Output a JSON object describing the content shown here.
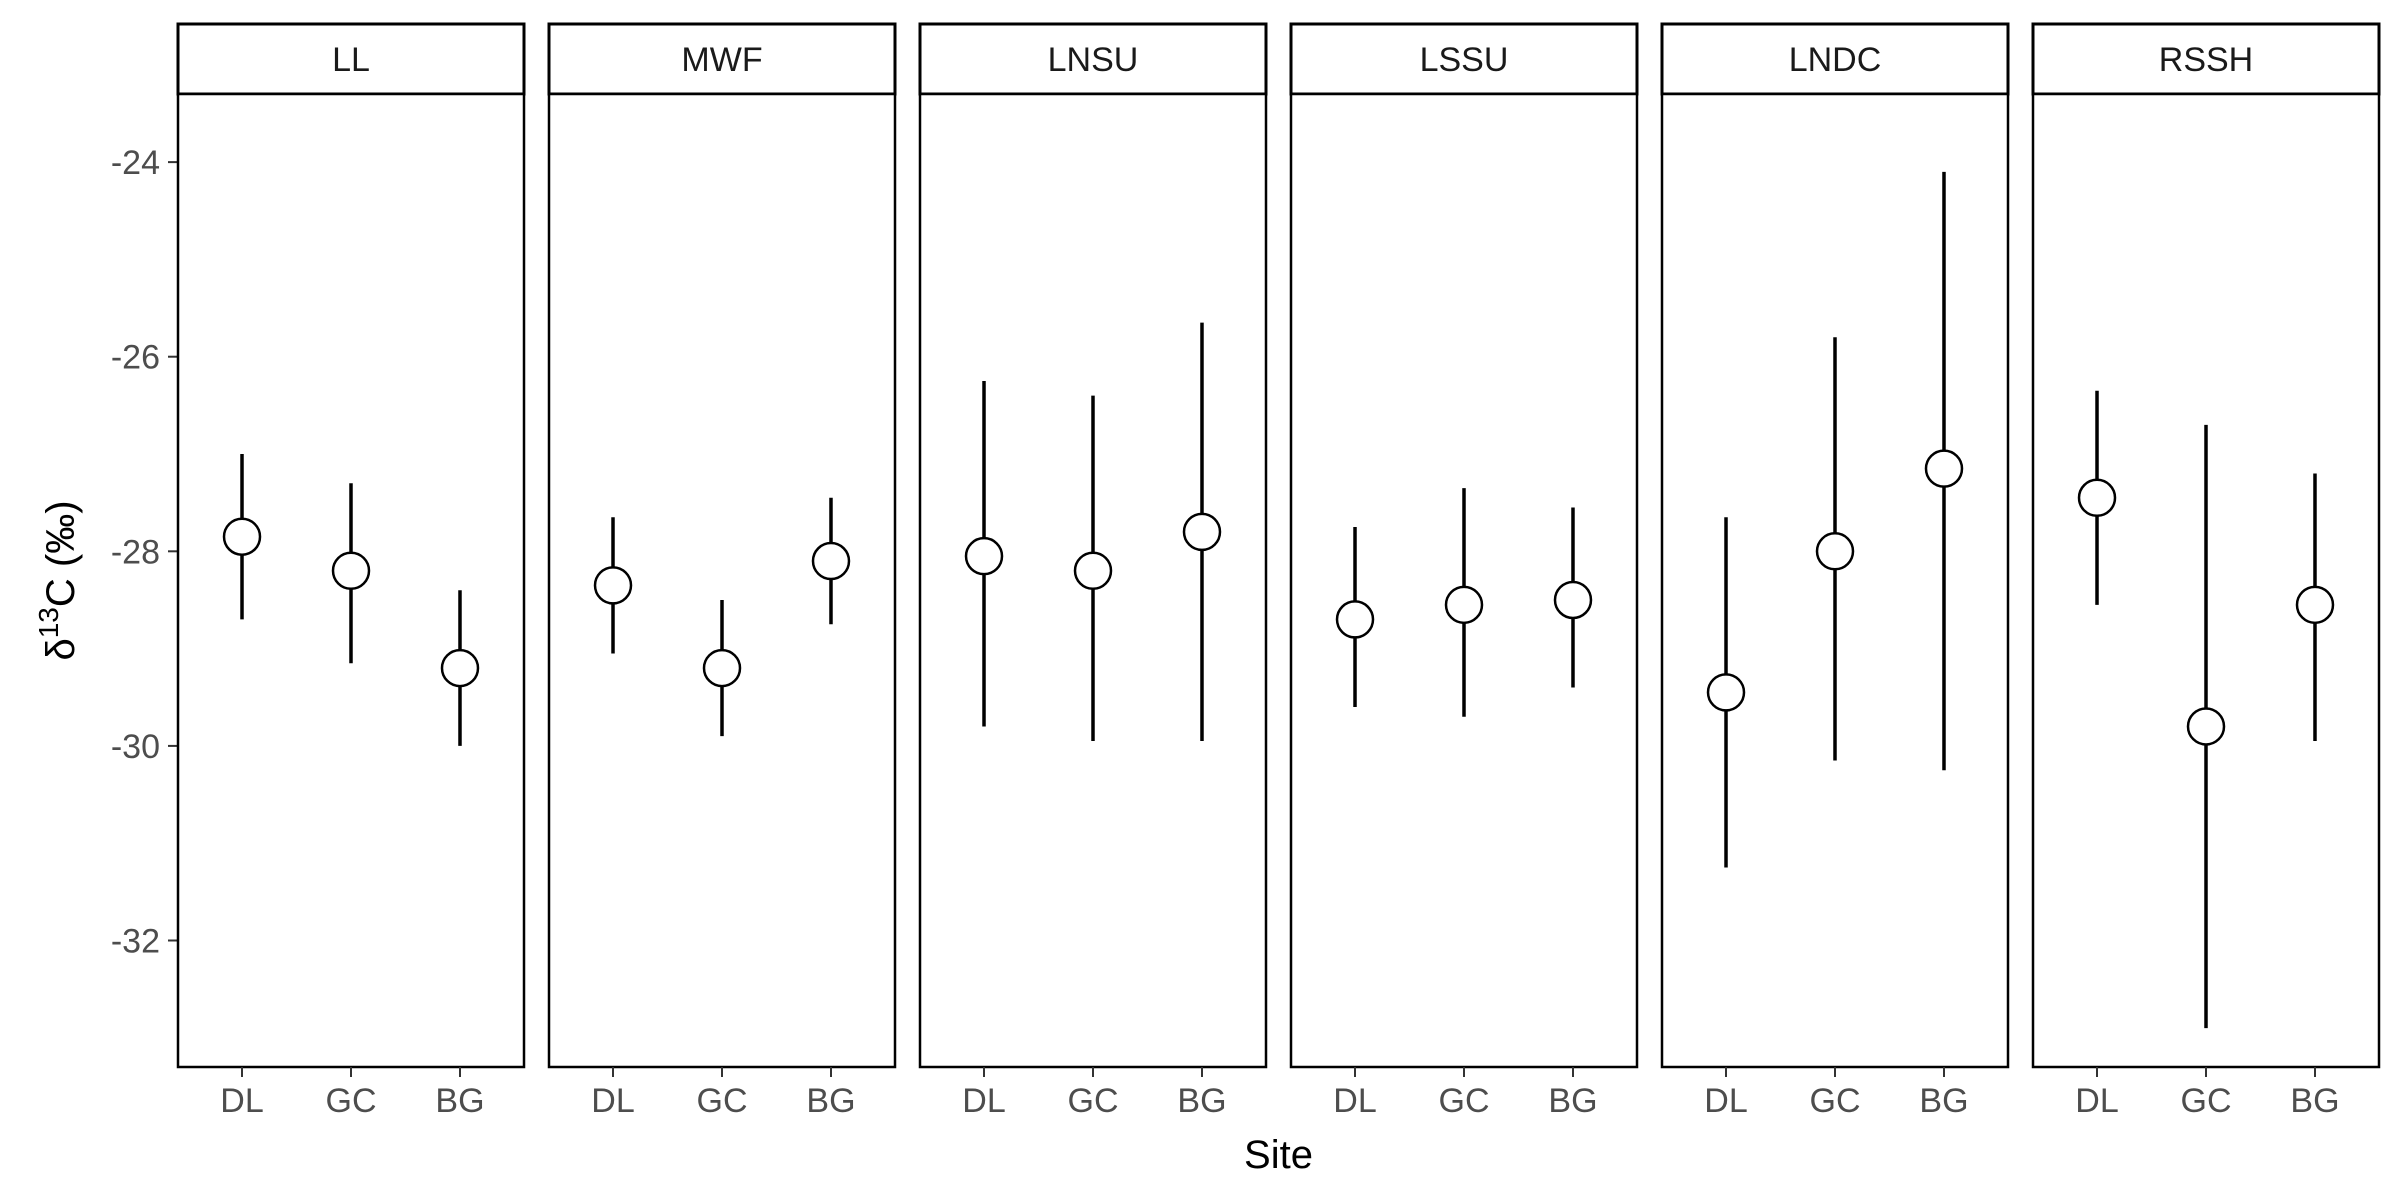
{
  "chart_data": {
    "type": "scatter",
    "subtype": "faceted point with error bars",
    "title": "",
    "xlabel": "Site",
    "ylabel": {
      "prefix": "δ",
      "superscript": "13",
      "suffix": "C (‰)"
    },
    "ylim": [
      -33.3,
      -23.3
    ],
    "yticks": [
      -24,
      -26,
      -28,
      -30,
      -32
    ],
    "ytick_labels": [
      "-24",
      "-26",
      "-28",
      "-30",
      "-32"
    ],
    "categories": [
      "DL",
      "GC",
      "BG"
    ],
    "grid": false,
    "legend": "none",
    "facets": [
      {
        "name": "LL",
        "points": [
          {
            "x": "DL",
            "y": -27.85,
            "lower": -28.7,
            "upper": -27.0
          },
          {
            "x": "GC",
            "y": -28.2,
            "lower": -29.15,
            "upper": -27.3
          },
          {
            "x": "BG",
            "y": -29.2,
            "lower": -30.0,
            "upper": -28.4
          }
        ]
      },
      {
        "name": "MWF",
        "points": [
          {
            "x": "DL",
            "y": -28.35,
            "lower": -29.05,
            "upper": -27.65
          },
          {
            "x": "GC",
            "y": -29.2,
            "lower": -29.9,
            "upper": -28.5
          },
          {
            "x": "BG",
            "y": -28.1,
            "lower": -28.75,
            "upper": -27.45
          }
        ]
      },
      {
        "name": "LNSU",
        "points": [
          {
            "x": "DL",
            "y": -28.05,
            "lower": -29.8,
            "upper": -26.25
          },
          {
            "x": "GC",
            "y": -28.2,
            "lower": -29.95,
            "upper": -26.4
          },
          {
            "x": "BG",
            "y": -27.8,
            "lower": -29.95,
            "upper": -25.65
          }
        ]
      },
      {
        "name": "LSSU",
        "points": [
          {
            "x": "DL",
            "y": -28.7,
            "lower": -29.6,
            "upper": -27.75
          },
          {
            "x": "GC",
            "y": -28.55,
            "lower": -29.7,
            "upper": -27.35
          },
          {
            "x": "BG",
            "y": -28.5,
            "lower": -29.4,
            "upper": -27.55
          }
        ]
      },
      {
        "name": "LNDC",
        "points": [
          {
            "x": "DL",
            "y": -29.45,
            "lower": -31.25,
            "upper": -27.65
          },
          {
            "x": "GC",
            "y": -28.0,
            "lower": -30.15,
            "upper": -25.8
          },
          {
            "x": "BG",
            "y": -27.15,
            "lower": -30.25,
            "upper": -24.1
          }
        ]
      },
      {
        "name": "RSSH",
        "points": [
          {
            "x": "DL",
            "y": -27.45,
            "lower": -28.55,
            "upper": -26.35
          },
          {
            "x": "GC",
            "y": -29.8,
            "lower": -32.9,
            "upper": -26.7
          },
          {
            "x": "BG",
            "y": -28.55,
            "lower": -29.95,
            "upper": -27.2
          }
        ]
      }
    ]
  }
}
